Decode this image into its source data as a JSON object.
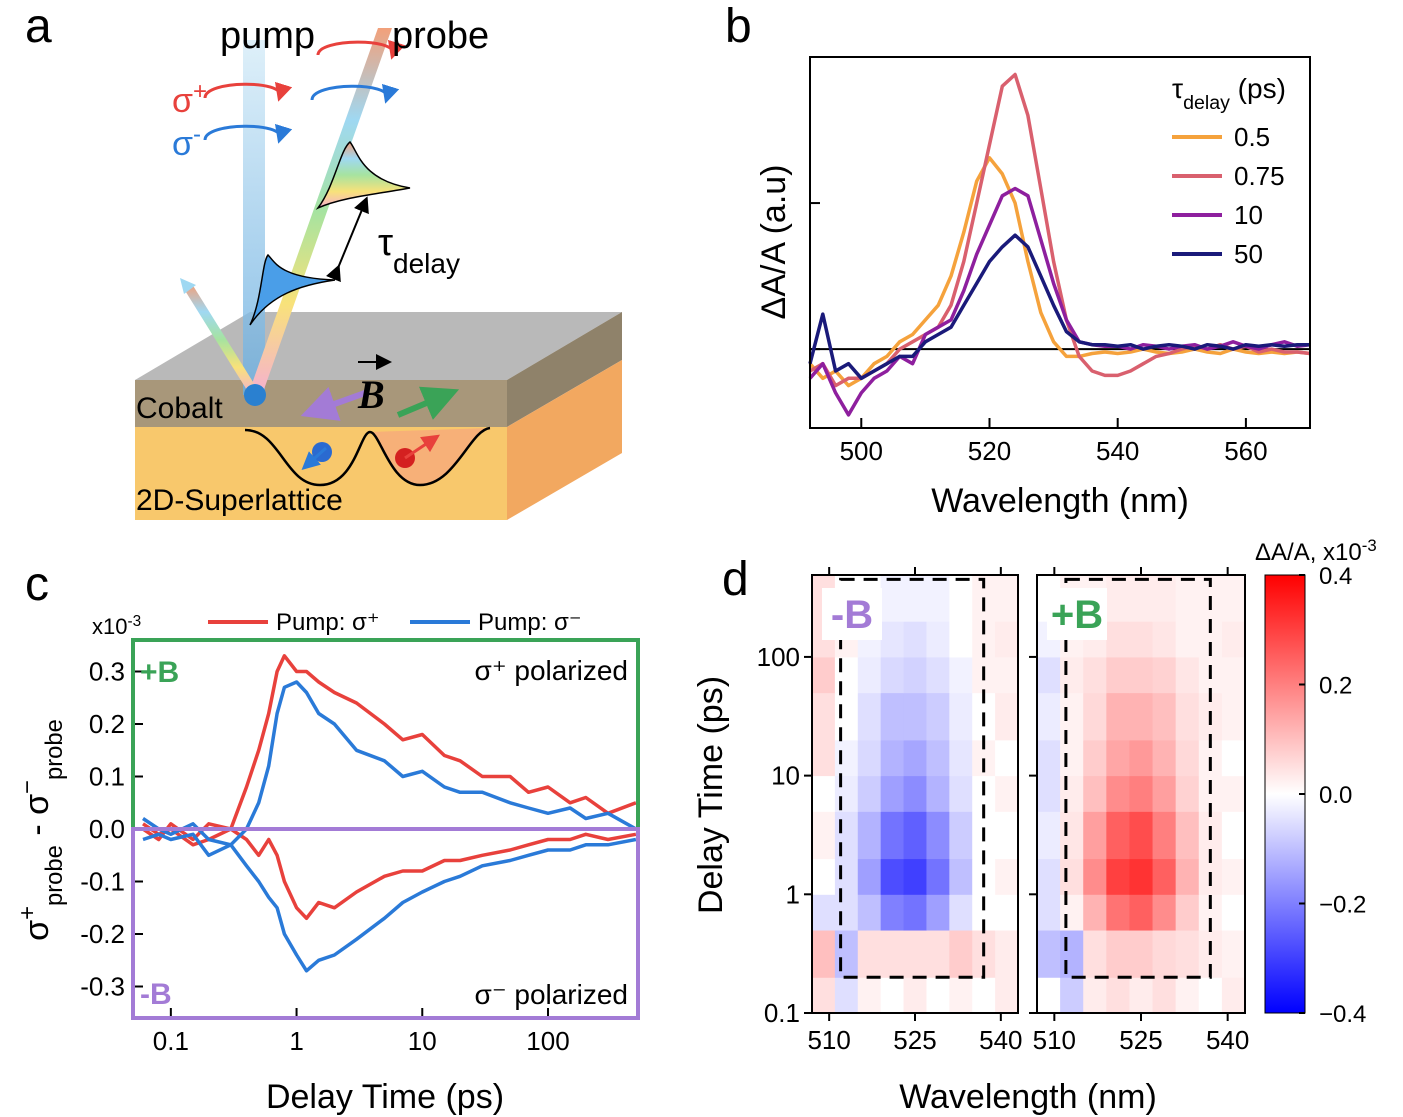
{
  "diagram": {
    "panel_label": "a",
    "pump": "pump",
    "probe": "probe",
    "sigma": "σ",
    "plus": "+",
    "minus": "-",
    "tau": "τ",
    "delay": "delay",
    "cobalt": "Cobalt",
    "field": "B",
    "substrate": "2D-Superlattice"
  },
  "chart_data": [
    {
      "type": "line",
      "panel_label": "b",
      "xlabel": "Wavelength (nm)",
      "ylabel": "ΔA/A (a.u)",
      "legend_title": {
        "symbol": "τ",
        "sub": "delay",
        "unit": " (ps)"
      },
      "legend": "upper right",
      "xlim": [
        492,
        570
      ],
      "xticks": [
        500,
        520,
        540,
        560
      ],
      "ylim": [
        -0.54,
        2.0
      ],
      "ytick_marks": [
        0,
        1,
        2
      ],
      "zero_line": true,
      "x": [
        492,
        494,
        496,
        498,
        500,
        502,
        504,
        506,
        508,
        510,
        512,
        514,
        516,
        518,
        520,
        522,
        524,
        526,
        528,
        530,
        532,
        534,
        536,
        538,
        540,
        542,
        544,
        546,
        548,
        550,
        552,
        554,
        556,
        558,
        560,
        562,
        564,
        566,
        568,
        570
      ],
      "series": [
        {
          "name": "0.5",
          "color": "#f5a23c",
          "values": [
            -0.1,
            -0.2,
            -0.15,
            -0.25,
            -0.2,
            -0.1,
            -0.05,
            0.05,
            0.1,
            0.2,
            0.3,
            0.5,
            0.8,
            1.15,
            1.31,
            1.2,
            1.0,
            0.6,
            0.25,
            0.05,
            -0.05,
            -0.05,
            -0.03,
            -0.02,
            -0.03,
            -0.02,
            0.0,
            -0.02,
            -0.03,
            -0.02,
            0.0,
            -0.02,
            -0.03,
            0.0,
            -0.02,
            -0.03,
            -0.02,
            -0.03,
            -0.02,
            -0.03
          ]
        },
        {
          "name": "0.75",
          "color": "#d9606e",
          "values": [
            -0.15,
            -0.1,
            -0.25,
            -0.2,
            -0.2,
            -0.15,
            -0.1,
            0.0,
            0.05,
            0.1,
            0.15,
            0.3,
            0.6,
            1.0,
            1.4,
            1.8,
            1.88,
            1.6,
            1.1,
            0.6,
            0.2,
            -0.05,
            -0.15,
            -0.18,
            -0.18,
            -0.15,
            -0.1,
            -0.05,
            -0.03,
            0.0,
            0.02,
            0.0,
            0.03,
            0.0,
            0.02,
            -0.02,
            0.0,
            -0.02,
            -0.02,
            -0.03
          ]
        },
        {
          "name": "10",
          "color": "#8e1f9e",
          "values": [
            -0.2,
            -0.1,
            -0.3,
            -0.45,
            -0.3,
            -0.2,
            -0.15,
            -0.05,
            -0.1,
            0.1,
            0.15,
            0.2,
            0.4,
            0.65,
            0.85,
            1.05,
            1.1,
            1.05,
            0.75,
            0.45,
            0.2,
            0.05,
            0.03,
            0.02,
            0.02,
            0.0,
            0.03,
            0.02,
            0.0,
            0.02,
            0.03,
            0.0,
            0.02,
            0.05,
            0.02,
            0.0,
            0.03,
            0.05,
            0.02,
            0.03
          ]
        },
        {
          "name": "50",
          "color": "#1a1a7a",
          "values": [
            -0.1,
            0.24,
            -0.15,
            -0.1,
            -0.2,
            -0.15,
            -0.1,
            -0.05,
            -0.05,
            0.05,
            0.1,
            0.15,
            0.3,
            0.45,
            0.6,
            0.7,
            0.78,
            0.7,
            0.5,
            0.3,
            0.12,
            0.05,
            0.03,
            0.03,
            0.02,
            0.03,
            0.0,
            0.02,
            0.03,
            0.02,
            0.0,
            0.03,
            0.02,
            0.0,
            0.03,
            0.02,
            0.03,
            0.02,
            0.03,
            0.03
          ]
        }
      ]
    },
    {
      "type": "line",
      "panel_label": "c",
      "xlabel": "Delay Time (ps)",
      "ylabel": {
        "sigma": "σ",
        "plus": "+",
        "minus": "−",
        "sub": "probe",
        "sep": " - "
      },
      "scale_label": {
        "text": "x10",
        "exp": "-3"
      },
      "legend": "top",
      "xscale": "log",
      "xlim": [
        0.05,
        520
      ],
      "xticks": [
        0.1,
        1,
        10,
        100
      ],
      "ylim": [
        -0.36,
        0.36
      ],
      "yticks": [
        -0.3,
        -0.2,
        -0.1,
        {
          "value": 0,
          "label": "0.0"
        },
        0.1,
        0.2,
        0.3
      ],
      "frame_colors": {
        "top": "#3aa357",
        "bottom": "#a37bd6"
      },
      "annotations": [
        {
          "text": "+B",
          "color": "#3aa357"
        },
        {
          "text": "-B",
          "color": "#a37bd6"
        },
        {
          "text": "σ⁺ polarized"
        },
        {
          "text": "σ⁻ polarized"
        }
      ],
      "x": [
        0.06,
        0.08,
        0.1,
        0.15,
        0.2,
        0.3,
        0.4,
        0.5,
        0.6,
        0.7,
        0.8,
        1,
        1.2,
        1.5,
        2,
        3,
        5,
        7,
        10,
        15,
        20,
        30,
        50,
        70,
        100,
        150,
        200,
        300,
        500
      ],
      "series": [
        {
          "name": "Pump: σ⁺",
          "color": "#e8413c",
          "values": [
            0.0,
            -0.02,
            0.01,
            -0.02,
            0.01,
            0.0,
            0.08,
            0.15,
            0.22,
            0.3,
            0.33,
            0.3,
            0.3,
            0.28,
            0.26,
            0.24,
            0.2,
            0.17,
            0.18,
            0.14,
            0.13,
            0.1,
            0.1,
            0.07,
            0.08,
            0.05,
            0.06,
            0.03,
            0.05
          ],
          "values_minus_B": [
            0.01,
            -0.01,
            0,
            -0.03,
            -0.02,
            0.0,
            -0.02,
            -0.05,
            -0.02,
            -0.05,
            -0.1,
            -0.15,
            -0.17,
            -0.14,
            -0.15,
            -0.12,
            -0.09,
            -0.08,
            -0.08,
            -0.06,
            -0.06,
            -0.05,
            -0.04,
            -0.03,
            -0.02,
            -0.02,
            -0.01,
            -0.02,
            -0.01
          ]
        },
        {
          "name": "Pump: σ⁻",
          "color": "#2a7ad8",
          "values": [
            0.02,
            0.0,
            -0.01,
            0.01,
            -0.02,
            -0.03,
            0.0,
            0.05,
            0.12,
            0.22,
            0.27,
            0.28,
            0.26,
            0.22,
            0.2,
            0.15,
            0.13,
            0.1,
            0.11,
            0.08,
            0.07,
            0.07,
            0.05,
            0.04,
            0.03,
            0.04,
            0.02,
            0.03,
            0.0
          ],
          "values_minus_B": [
            -0.02,
            -0.01,
            -0.02,
            -0.01,
            -0.05,
            -0.03,
            -0.07,
            -0.1,
            -0.13,
            -0.15,
            -0.2,
            -0.24,
            -0.27,
            -0.25,
            -0.24,
            -0.21,
            -0.17,
            -0.14,
            -0.12,
            -0.1,
            -0.09,
            -0.07,
            -0.06,
            -0.05,
            -0.04,
            -0.04,
            -0.03,
            -0.03,
            -0.02
          ]
        }
      ]
    },
    {
      "type": "heatmap",
      "panel_label": "d",
      "xlabel": "Wavelength (nm)",
      "ylabel": "Delay Time (ps)",
      "xlim": [
        507,
        543
      ],
      "xticks": [
        510,
        525,
        540
      ],
      "yscale": "log",
      "ylim": [
        0.1,
        490
      ],
      "yticks": [
        0.1,
        1,
        10,
        100
      ],
      "x_bins": [
        507,
        511,
        515,
        519,
        523,
        527,
        531,
        535,
        539,
        543
      ],
      "y_bins": [
        0.1,
        0.2,
        0.5,
        1,
        2,
        5,
        10,
        20,
        50,
        100,
        200,
        490
      ],
      "box": {
        "x": [
          512,
          537
        ],
        "y": [
          0.2,
          450
        ]
      },
      "maps": [
        {
          "label": "-B",
          "label_color": "#a37bd6",
          "values": [
            [
              0.05,
              -0.05,
              0.02,
              0.0,
              0.03,
              0.0,
              0.02,
              0.0,
              0.03
            ],
            [
              0.1,
              -0.1,
              0.05,
              0.05,
              0.05,
              0.05,
              0.08,
              0.05,
              0.03
            ],
            [
              -0.05,
              -0.05,
              -0.1,
              -0.2,
              -0.22,
              -0.15,
              -0.05,
              0.0,
              0.0
            ],
            [
              0.0,
              -0.05,
              -0.15,
              -0.28,
              -0.3,
              -0.22,
              -0.1,
              0.0,
              0.02
            ],
            [
              0.02,
              -0.05,
              -0.12,
              -0.22,
              -0.25,
              -0.18,
              -0.08,
              0.0,
              0.0
            ],
            [
              0.0,
              -0.03,
              -0.08,
              -0.15,
              -0.18,
              -0.12,
              -0.05,
              0.0,
              0.02
            ],
            [
              0.05,
              -0.02,
              -0.06,
              -0.12,
              -0.14,
              -0.1,
              -0.04,
              0.02,
              0.0
            ],
            [
              0.05,
              0.0,
              -0.05,
              -0.1,
              -0.1,
              -0.08,
              -0.03,
              0.0,
              0.03
            ],
            [
              0.08,
              0.0,
              -0.03,
              -0.06,
              -0.07,
              -0.05,
              -0.02,
              0.02,
              0.02
            ],
            [
              0.05,
              0.02,
              -0.02,
              -0.04,
              -0.05,
              -0.03,
              0.0,
              0.02,
              0.03
            ],
            [
              0.05,
              0.0,
              0.0,
              -0.02,
              -0.02,
              -0.02,
              0.0,
              0.02,
              0.02
            ]
          ]
        },
        {
          "label": "+B",
          "label_color": "#3aa357",
          "values": [
            [
              0.0,
              -0.08,
              0.03,
              0.05,
              0.03,
              0.05,
              0.02,
              0.0,
              0.03
            ],
            [
              -0.1,
              -0.12,
              0.05,
              0.08,
              0.08,
              0.06,
              0.05,
              0.03,
              0.02
            ],
            [
              -0.05,
              0.02,
              0.12,
              0.22,
              0.25,
              0.18,
              0.08,
              0.02,
              0.0
            ],
            [
              -0.05,
              0.05,
              0.18,
              0.3,
              0.32,
              0.25,
              0.12,
              0.03,
              0.02
            ],
            [
              -0.03,
              0.04,
              0.15,
              0.25,
              0.28,
              0.2,
              0.1,
              0.03,
              0.0
            ],
            [
              -0.05,
              0.03,
              0.1,
              0.18,
              0.2,
              0.15,
              0.07,
              0.02,
              0.02
            ],
            [
              -0.05,
              0.02,
              0.08,
              0.14,
              0.16,
              0.12,
              0.06,
              0.02,
              0.0
            ],
            [
              -0.03,
              0.02,
              0.06,
              0.12,
              0.12,
              0.1,
              0.05,
              0.03,
              0.02
            ],
            [
              -0.05,
              0.03,
              0.05,
              0.08,
              0.08,
              0.07,
              0.04,
              0.02,
              0.02
            ],
            [
              -0.02,
              0.02,
              0.03,
              0.05,
              0.05,
              0.04,
              0.02,
              0.02,
              0.03
            ],
            [
              0.0,
              0.02,
              0.02,
              0.03,
              0.03,
              0.03,
              0.02,
              0.02,
              0.02
            ]
          ]
        }
      ],
      "colorbar": {
        "title": {
          "text": "ΔA/A, x10",
          "exp": "-3"
        },
        "lim": [
          -0.4,
          0.4
        ],
        "colors": [
          "#0000ff",
          "#ffffff",
          "#ff0000"
        ],
        "ticks": [
          {
            "value": -0.4,
            "label": "−0.4"
          },
          {
            "value": -0.2,
            "label": "−0.2"
          },
          {
            "value": 0,
            "label": "0.0"
          },
          0.2,
          0.4
        ]
      }
    }
  ]
}
